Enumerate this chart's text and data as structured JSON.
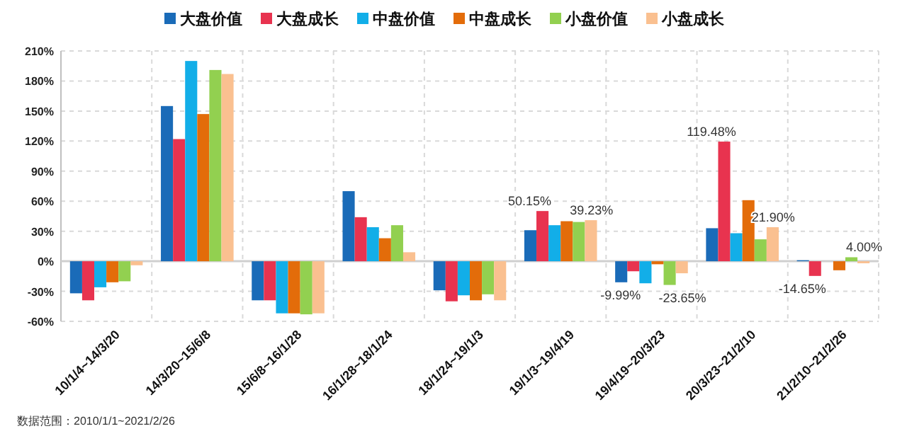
{
  "chart_data": {
    "type": "bar",
    "legend": "top",
    "grid": true,
    "categories": [
      "10/1/4~14/3/20",
      "14/3/20~15/6/8",
      "15/6/8~16/1/28",
      "16/1/28~18/1/24",
      "18/1/24~19/1/3",
      "19/1/3~19/4/19",
      "19/4/19~20/3/23",
      "20/3/23~21/2/10",
      "21/2/10~21/2/26"
    ],
    "series": [
      {
        "name": "大盘价值",
        "color": "#1a6bb8",
        "values": [
          -32,
          155,
          -39,
          70,
          -29,
          31,
          -21,
          33,
          1
        ]
      },
      {
        "name": "大盘成长",
        "color": "#e8334f",
        "values": [
          -39,
          122,
          -39,
          44,
          -40,
          50.15,
          -9.99,
          119.48,
          -14.65
        ],
        "value_labels": [
          null,
          null,
          null,
          null,
          null,
          "50.15%",
          "-9.99%",
          "119.48%",
          "-14.65%"
        ]
      },
      {
        "name": "中盘价值",
        "color": "#12aee8",
        "values": [
          -26,
          200,
          -52,
          34,
          -34,
          36,
          -22,
          28,
          null
        ]
      },
      {
        "name": "中盘成长",
        "color": "#e36c0a",
        "values": [
          -21,
          147,
          -52,
          23,
          -39,
          40,
          -3,
          61,
          -9
        ]
      },
      {
        "name": "小盘价值",
        "color": "#92d050",
        "values": [
          -20,
          191,
          -53,
          36,
          -33,
          39.23,
          -23.65,
          21.9,
          4.0
        ],
        "value_labels": [
          null,
          null,
          null,
          null,
          null,
          "39.23%",
          "-23.65%",
          "21.90%",
          "4.00%"
        ]
      },
      {
        "name": "小盘成长",
        "color": "#fac090",
        "values": [
          -4,
          187,
          -52,
          9,
          -39,
          41,
          -12,
          34,
          -2
        ]
      }
    ],
    "ylim": [
      -60,
      210
    ],
    "yticks": [
      {
        "value": -60,
        "label": "-60%"
      },
      {
        "value": -30,
        "label": "-30%"
      },
      {
        "value": 0,
        "label": "0%"
      },
      {
        "value": 30,
        "label": "30%"
      },
      {
        "value": 60,
        "label": "60%"
      },
      {
        "value": 90,
        "label": "90%"
      },
      {
        "value": 120,
        "label": "120%"
      },
      {
        "value": 150,
        "label": "150%"
      },
      {
        "value": 180,
        "label": "180%"
      },
      {
        "value": 210,
        "label": "210%"
      }
    ],
    "annotations": [
      "数据范围：2010/1/1~2021/2/26"
    ]
  }
}
